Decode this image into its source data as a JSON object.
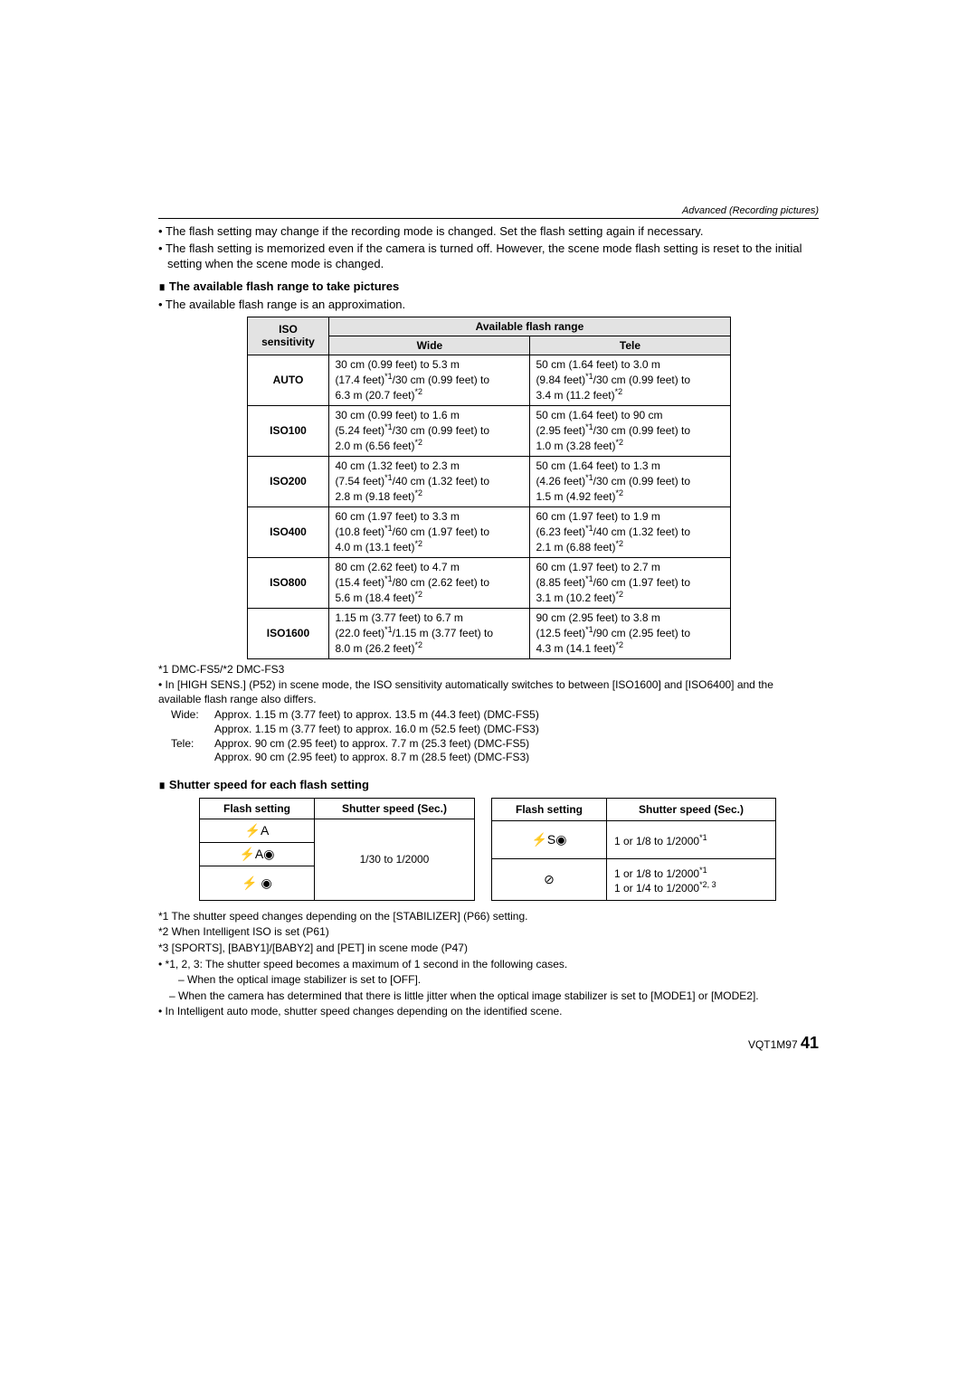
{
  "header": "Advanced (Recording pictures)",
  "intro_bullets": [
    "The flash setting may change if the recording mode is changed. Set the flash setting again if necessary.",
    "The flash setting is memorized even if the camera is turned off. However, the scene mode flash setting is reset to the initial setting when the scene mode is changed."
  ],
  "section1_title": "∎ The available flash range to take pictures",
  "section1_note": "• The available flash range is an approximation.",
  "flash_table": {
    "head_iso": "ISO sensitivity",
    "head_range": "Available flash range",
    "head_wide": "Wide",
    "head_tele": "Tele",
    "rows": [
      {
        "iso": "AUTO",
        "wide_l1": "30 cm (0.99 feet) to 5.3 m",
        "wide_l2": "(17.4 feet)*1/30 cm (0.99 feet) to",
        "wide_l3": "6.3 m (20.7 feet)*2",
        "tele_l1": "50 cm (1.64 feet) to 3.0 m",
        "tele_l2": "(9.84 feet)*1/30 cm (0.99 feet) to",
        "tele_l3": "3.4 m (11.2 feet)*2"
      },
      {
        "iso": "ISO100",
        "wide_l1": "30 cm (0.99 feet) to 1.6 m",
        "wide_l2": "(5.24 feet)*1/30 cm (0.99 feet) to",
        "wide_l3": "2.0 m (6.56 feet)*2",
        "tele_l1": "50 cm (1.64 feet) to 90 cm",
        "tele_l2": "(2.95 feet)*1/30 cm (0.99 feet) to",
        "tele_l3": "1.0 m (3.28 feet)*2"
      },
      {
        "iso": "ISO200",
        "wide_l1": "40 cm (1.32 feet) to 2.3 m",
        "wide_l2": "(7.54 feet)*1/40 cm (1.32 feet) to",
        "wide_l3": "2.8 m (9.18 feet)*2",
        "tele_l1": "50 cm (1.64 feet) to 1.3 m",
        "tele_l2": "(4.26 feet)*1/30 cm (0.99 feet) to",
        "tele_l3": "1.5 m (4.92 feet)*2"
      },
      {
        "iso": "ISO400",
        "wide_l1": "60 cm (1.97 feet) to 3.3 m",
        "wide_l2": "(10.8 feet)*1/60 cm (1.97 feet) to",
        "wide_l3": "4.0 m (13.1 feet)*2",
        "tele_l1": "60 cm (1.97 feet) to 1.9 m",
        "tele_l2": "(6.23 feet)*1/40 cm (1.32 feet) to",
        "tele_l3": "2.1 m (6.88 feet)*2"
      },
      {
        "iso": "ISO800",
        "wide_l1": "80 cm (2.62 feet) to 4.7 m",
        "wide_l2": "(15.4 feet)*1/80 cm (2.62 feet) to",
        "wide_l3": "5.6 m (18.4 feet)*2",
        "tele_l1": "60 cm (1.97 feet) to 2.7 m",
        "tele_l2": "(8.85 feet)*1/60 cm (1.97 feet) to",
        "tele_l3": "3.1 m (10.2 feet)*2"
      },
      {
        "iso": "ISO1600",
        "wide_l1": "1.15 m (3.77 feet) to 6.7 m",
        "wide_l2": "(22.0 feet)*1/1.15 m (3.77 feet) to",
        "wide_l3": "8.0 m (26.2 feet)*2",
        "tele_l1": "90 cm (2.95 feet) to 3.8 m",
        "tele_l2": "(12.5 feet)*1/90 cm (2.95 feet) to",
        "tele_l3": "4.3 m (14.1 feet)*2"
      }
    ]
  },
  "foot_model": "*1 DMC-FS5/*2 DMC-FS3",
  "foot_highsens": "• In [HIGH SENS.] (P52) in scene mode, the ISO sensitivity automatically switches to between [ISO1600] and [ISO6400] and the available flash range also differs.",
  "wide_label": "Wide:",
  "tele_label": "Tele:",
  "wide_line1": "Approx. 1.15 m (3.77 feet) to approx. 13.5 m (44.3 feet) (DMC-FS5)",
  "wide_line2": "Approx. 1.15 m (3.77 feet) to approx. 16.0 m (52.5 feet) (DMC-FS3)",
  "tele_line1": "Approx. 90 cm (2.95 feet) to approx. 7.7 m (25.3 feet) (DMC-FS5)",
  "tele_line2": "Approx. 90 cm (2.95 feet) to approx. 8.7 m (28.5 feet) (DMC-FS3)",
  "section2_title": "∎ Shutter speed for each flash setting",
  "shutter_left": {
    "head1": "Flash setting",
    "head2": "Shutter speed (Sec.)",
    "icon1": "⚡A",
    "icon2": "⚡A◉",
    "icon3": "⚡ ◉",
    "speed": "1/30 to 1/2000"
  },
  "shutter_right": {
    "head1": "Flash setting",
    "head2": "Shutter speed (Sec.)",
    "icon1": "⚡S◉",
    "icon2": "⊘",
    "speed1_a": "1 or 1/8 to 1/2000",
    "speed1_sup": "*1",
    "speed2_a": "1 or 1/8 to 1/2000",
    "speed2_sup": "*1",
    "speed2_b": "1 or 1/4 to 1/2000",
    "speed2_b_sup": "*2, 3"
  },
  "footnotes": {
    "f1": "*1 The shutter speed changes depending on the [STABILIZER] (P66) setting.",
    "f2": "*2 When Intelligent ISO is set (P61)",
    "f3": "*3 [SPORTS], [BABY1]/[BABY2] and [PET] in scene mode (P47)",
    "f4a": "• *1, 2, 3: The shutter speed becomes a maximum of 1 second in the following cases.",
    "f4b": "– When the optical image stabilizer is set to [OFF].",
    "f4c": "– When the camera has determined that there is little jitter when the optical image stabilizer is set to [MODE1] or [MODE2].",
    "f5": "• In Intelligent auto mode, shutter speed changes depending on the identified scene."
  },
  "doc_code": "VQT1M97",
  "page_number": "41"
}
